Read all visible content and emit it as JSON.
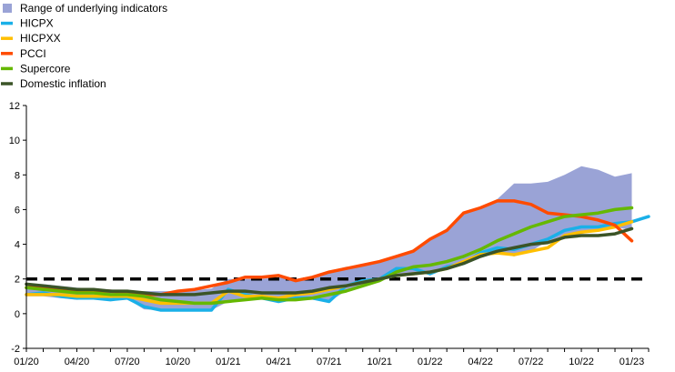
{
  "chart_data": {
    "type": "line",
    "ylim": [
      -2,
      12
    ],
    "yticks": [
      -2,
      0,
      2,
      4,
      6,
      8,
      10,
      12
    ],
    "xticks": [
      "01/20",
      "04/20",
      "07/20",
      "10/20",
      "01/21",
      "04/21",
      "07/21",
      "10/21",
      "01/22",
      "04/22",
      "07/22",
      "10/22",
      "01/23"
    ],
    "grid": false,
    "legend_position": "top-left",
    "x": [
      "01/20",
      "02/20",
      "03/20",
      "04/20",
      "05/20",
      "06/20",
      "07/20",
      "08/20",
      "09/20",
      "10/20",
      "11/20",
      "12/20",
      "01/21",
      "02/21",
      "03/21",
      "04/21",
      "05/21",
      "06/21",
      "07/21",
      "08/21",
      "09/21",
      "10/21",
      "11/21",
      "12/21",
      "01/22",
      "02/22",
      "03/22",
      "04/22",
      "05/22",
      "06/22",
      "07/22",
      "08/22",
      "09/22",
      "10/22",
      "11/22",
      "12/22",
      "01/23",
      "02/23"
    ],
    "range": {
      "name": "Range of underlying indicators",
      "color": "#9aa3d6",
      "low": [
        1.0,
        1.0,
        0.9,
        0.8,
        0.85,
        0.8,
        0.85,
        0.25,
        0.2,
        0.2,
        0.25,
        0.2,
        0.7,
        0.8,
        0.85,
        0.7,
        0.8,
        0.8,
        0.7,
        1.3,
        1.6,
        1.9,
        2.2,
        2.3,
        2.4,
        2.6,
        2.8,
        3.2,
        3.5,
        3.3,
        3.6,
        4.2,
        4.5,
        4.6,
        4.8,
        5.0,
        4.8,
        null
      ],
      "high": [
        1.7,
        1.7,
        1.6,
        1.5,
        1.45,
        1.4,
        1.3,
        1.3,
        1.3,
        1.3,
        1.35,
        1.45,
        2.0,
        2.0,
        2.0,
        2.1,
        2.0,
        2.1,
        2.45,
        2.7,
        2.75,
        3.0,
        3.3,
        3.7,
        4.3,
        4.8,
        5.8,
        6.1,
        6.6,
        7.5,
        7.5,
        7.6,
        8.0,
        8.5,
        8.3,
        7.9,
        8.1,
        null
      ]
    },
    "series": [
      {
        "name": "HICPX",
        "color": "#1ab0e8",
        "values": [
          1.1,
          1.2,
          1.0,
          0.9,
          0.9,
          0.8,
          0.9,
          0.4,
          0.2,
          0.2,
          0.2,
          0.2,
          1.4,
          1.1,
          0.9,
          0.7,
          0.9,
          0.9,
          0.7,
          1.6,
          1.9,
          2.0,
          2.6,
          2.6,
          2.3,
          2.7,
          2.9,
          3.5,
          3.8,
          3.7,
          4.0,
          4.3,
          4.8,
          5.0,
          5.0,
          5.2,
          5.3,
          5.6
        ]
      },
      {
        "name": "HICPXX",
        "color": "#ffbf00",
        "values": [
          1.1,
          1.1,
          1.1,
          1.0,
          1.0,
          1.0,
          1.0,
          0.8,
          0.6,
          0.6,
          0.6,
          0.6,
          1.3,
          1.0,
          1.0,
          0.9,
          1.1,
          1.2,
          1.4,
          1.6,
          1.8,
          2.0,
          2.2,
          2.3,
          2.4,
          2.6,
          3.0,
          3.4,
          3.5,
          3.4,
          3.6,
          3.8,
          4.5,
          4.7,
          4.8,
          5.0,
          5.3,
          null
        ]
      },
      {
        "name": "PCCI",
        "color": "#ff4b00",
        "values": [
          1.5,
          1.5,
          1.4,
          1.3,
          1.3,
          1.3,
          1.2,
          1.1,
          1.1,
          1.3,
          1.4,
          1.6,
          1.8,
          2.1,
          2.1,
          2.2,
          1.9,
          2.1,
          2.4,
          2.6,
          2.8,
          3.0,
          3.3,
          3.6,
          4.3,
          4.8,
          5.8,
          6.1,
          6.5,
          6.5,
          6.3,
          5.8,
          5.7,
          5.6,
          5.4,
          5.1,
          4.2,
          null
        ]
      },
      {
        "name": "Supercore",
        "color": "#65b800",
        "values": [
          1.5,
          1.4,
          1.3,
          1.2,
          1.2,
          1.1,
          1.1,
          1.0,
          0.8,
          0.7,
          0.6,
          0.6,
          0.7,
          0.8,
          0.9,
          0.8,
          0.8,
          0.9,
          1.1,
          1.3,
          1.6,
          1.9,
          2.4,
          2.7,
          2.8,
          3.0,
          3.3,
          3.7,
          4.2,
          4.6,
          5.0,
          5.3,
          5.6,
          5.7,
          5.8,
          6.0,
          6.1,
          null
        ]
      },
      {
        "name": "Domestic inflation",
        "color": "#3b5427",
        "values": [
          1.7,
          1.6,
          1.5,
          1.4,
          1.4,
          1.3,
          1.3,
          1.2,
          1.1,
          1.1,
          1.1,
          1.2,
          1.3,
          1.3,
          1.2,
          1.2,
          1.2,
          1.3,
          1.5,
          1.6,
          1.8,
          2.0,
          2.2,
          2.3,
          2.4,
          2.6,
          2.9,
          3.3,
          3.6,
          3.8,
          4.0,
          4.1,
          4.4,
          4.5,
          4.5,
          4.6,
          4.9,
          null
        ]
      }
    ],
    "reference_line": {
      "value": 2,
      "style": "dashed",
      "color": "#000000"
    }
  }
}
